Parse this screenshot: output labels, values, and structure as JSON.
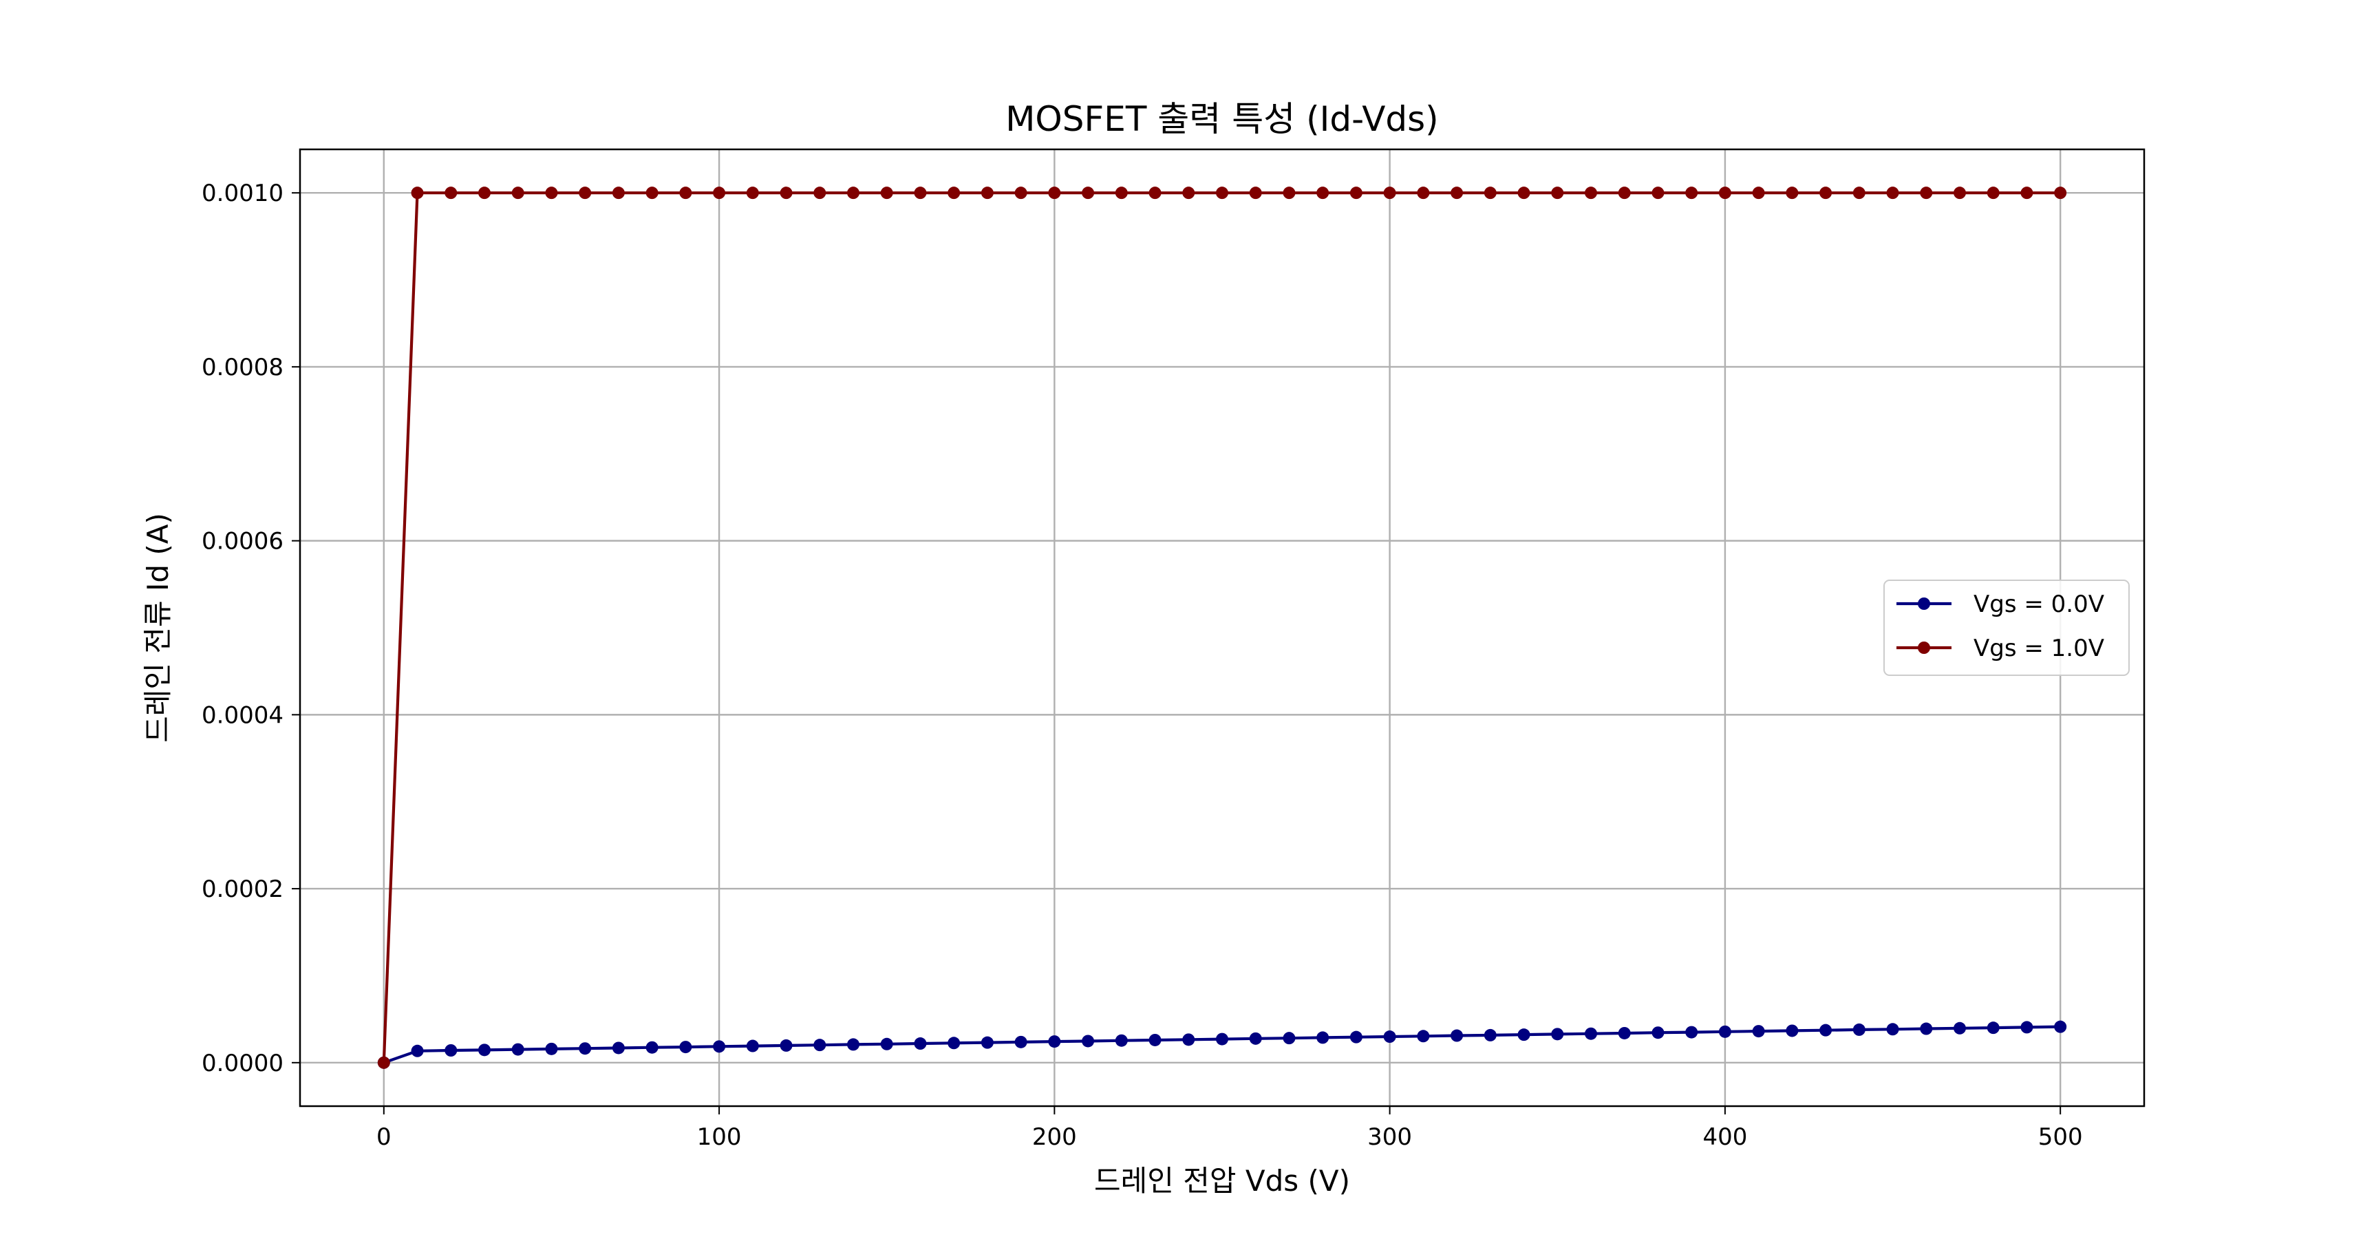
{
  "chart_data": {
    "type": "line",
    "title": "MOSFET 출력 특성 (Id-Vds)",
    "xlabel": "드레인 전압 Vds (V)",
    "ylabel": "드레인 전류 Id (A)",
    "xlim": [
      -25,
      525
    ],
    "ylim": [
      -5e-05,
      0.00105
    ],
    "x_ticks": [
      0,
      100,
      200,
      300,
      400,
      500
    ],
    "x_tick_labels": [
      "0",
      "100",
      "200",
      "300",
      "400",
      "500"
    ],
    "y_ticks": [
      0,
      0.0002,
      0.0004,
      0.0006,
      0.0008,
      0.001
    ],
    "y_tick_labels": [
      "0.0000",
      "0.0002",
      "0.0004",
      "0.0006",
      "0.0008",
      "0.0010"
    ],
    "grid": true,
    "legend_position": "center-right",
    "x": [
      0,
      10,
      20,
      30,
      40,
      50,
      60,
      70,
      80,
      90,
      100,
      110,
      120,
      130,
      140,
      150,
      160,
      170,
      180,
      190,
      200,
      210,
      220,
      230,
      240,
      250,
      260,
      270,
      280,
      290,
      300,
      310,
      320,
      330,
      340,
      350,
      360,
      370,
      380,
      390,
      400,
      410,
      420,
      430,
      440,
      450,
      460,
      470,
      480,
      490,
      500
    ],
    "series": [
      {
        "name": "Vgs = 0.0V",
        "color": "#000080",
        "values": [
          0,
          1.35e-05,
          1.41e-05,
          1.46e-05,
          1.52e-05,
          1.58e-05,
          1.63e-05,
          1.69e-05,
          1.75e-05,
          1.8e-05,
          1.86e-05,
          1.92e-05,
          1.97e-05,
          2.03e-05,
          2.09e-05,
          2.14e-05,
          2.2e-05,
          2.26e-05,
          2.31e-05,
          2.37e-05,
          2.43e-05,
          2.48e-05,
          2.54e-05,
          2.6e-05,
          2.65e-05,
          2.71e-05,
          2.77e-05,
          2.82e-05,
          2.88e-05,
          2.94e-05,
          2.99e-05,
          3.05e-05,
          3.11e-05,
          3.16e-05,
          3.22e-05,
          3.28e-05,
          3.33e-05,
          3.39e-05,
          3.45e-05,
          3.5e-05,
          3.56e-05,
          3.62e-05,
          3.67e-05,
          3.73e-05,
          3.79e-05,
          3.84e-05,
          3.9e-05,
          3.96e-05,
          4.01e-05,
          4.07e-05,
          4.13e-05
        ]
      },
      {
        "name": "Vgs = 1.0V",
        "color": "#800000",
        "values": [
          0,
          0.001,
          0.001,
          0.001,
          0.001,
          0.001,
          0.001,
          0.001,
          0.001,
          0.001,
          0.001,
          0.001,
          0.001,
          0.001,
          0.001,
          0.001,
          0.001,
          0.001,
          0.001,
          0.001,
          0.001,
          0.001,
          0.001,
          0.001,
          0.001,
          0.001,
          0.001,
          0.001,
          0.001,
          0.001,
          0.001,
          0.001,
          0.001,
          0.001,
          0.001,
          0.001,
          0.001,
          0.001,
          0.001,
          0.001,
          0.001,
          0.001,
          0.001,
          0.001,
          0.001,
          0.001,
          0.001,
          0.001,
          0.001,
          0.001,
          0.001
        ]
      }
    ]
  }
}
